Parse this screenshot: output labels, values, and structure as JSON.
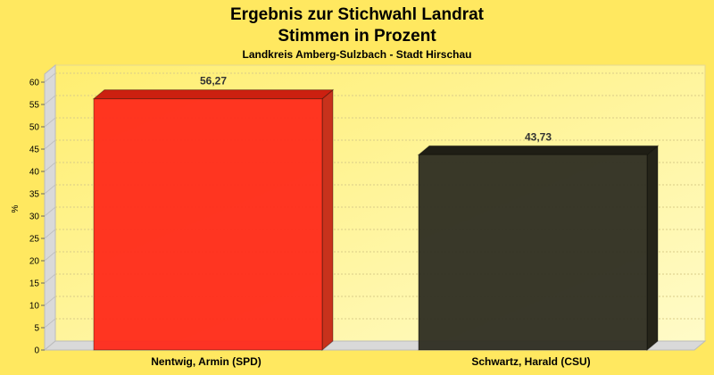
{
  "chart_data": {
    "type": "bar",
    "title": "Ergebnis zur Stichwahl Landrat",
    "title2": "Stimmen in Prozent",
    "subtitle": "Landkreis Amberg-Sulzbach - Stadt Hirschau",
    "ylabel": "%",
    "xlabel": "",
    "ylim": [
      0,
      60
    ],
    "yticks": [
      0,
      5,
      10,
      15,
      20,
      25,
      30,
      35,
      40,
      45,
      50,
      55,
      60
    ],
    "grid": true,
    "categories": [
      "Nentwig, Armin (SPD)",
      "Schwartz, Harald (CSU)"
    ],
    "values": [
      56.27,
      43.73
    ],
    "value_labels": [
      "56,27",
      "43,73"
    ],
    "bar_colors": [
      "#ff2a1a",
      "#2e2d22"
    ],
    "bar_top_colors": [
      "#cc2010",
      "#1f1e15"
    ],
    "bar_side_colors": [
      "#c8321c",
      "#252419"
    ]
  }
}
